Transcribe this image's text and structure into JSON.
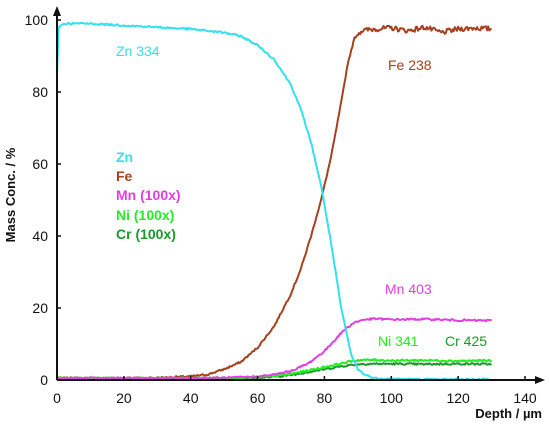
{
  "chart_data": {
    "type": "line",
    "xlabel": "Depth / µm",
    "ylabel": "Mass Conc. / %",
    "xlim": [
      0,
      140
    ],
    "ylim": [
      0,
      100
    ],
    "x_ticks": [
      0,
      20,
      40,
      60,
      80,
      100,
      120,
      140
    ],
    "y_ticks": [
      0,
      20,
      40,
      60,
      80,
      100
    ],
    "grid": false,
    "legend": {
      "placement": "center-left",
      "entries": [
        {
          "label": "Zn",
          "color": "#33e0f0"
        },
        {
          "label": "Fe",
          "color": "#a8401e"
        },
        {
          "label": "Mn (100x)",
          "color": "#e040e0"
        },
        {
          "label": "Ni (100x)",
          "color": "#22ee22"
        },
        {
          "label": "Cr (100x)",
          "color": "#1a9a2a"
        }
      ]
    },
    "annotations": [
      {
        "text": "Zn 334",
        "color": "#33e0f0"
      },
      {
        "text": "Fe 238",
        "color": "#a8401e"
      },
      {
        "text": "Mn 403",
        "color": "#e040e0"
      },
      {
        "text": "Ni 341",
        "color": "#22ee22"
      },
      {
        "text": "Cr 425",
        "color": "#1a9a2a"
      }
    ],
    "series": [
      {
        "name": "Zn",
        "color": "#33e0f0",
        "x": [
          0,
          0.5,
          2,
          10,
          20,
          30,
          40,
          50,
          55,
          60,
          65,
          70,
          73,
          76,
          79,
          82,
          85,
          88,
          90,
          92,
          95,
          100,
          110,
          120,
          130
        ],
        "y": [
          85,
          98,
          99,
          99,
          98.5,
          98,
          97.5,
          96.5,
          95.5,
          93,
          89,
          82,
          75,
          66,
          54,
          38,
          20,
          7,
          3,
          1.5,
          0.5,
          0.3,
          0.2,
          0.2,
          0.2
        ]
      },
      {
        "name": "Fe",
        "color": "#a8401e",
        "x": [
          0,
          10,
          20,
          30,
          40,
          45,
          50,
          55,
          60,
          65,
          70,
          73,
          76,
          79,
          82,
          85,
          87,
          89,
          91,
          95,
          100,
          105,
          110,
          115,
          120,
          125,
          130
        ],
        "y": [
          0.5,
          0.5,
          0.5,
          0.6,
          1,
          1.5,
          3,
          5,
          9,
          15,
          24,
          31,
          40,
          50,
          62,
          77,
          88,
          95,
          97,
          97.5,
          97.8,
          97,
          98,
          96.5,
          97.5,
          97.8,
          97.5
        ]
      },
      {
        "name": "Mn (100x)",
        "color": "#e040e0",
        "x": [
          0,
          20,
          40,
          50,
          60,
          65,
          70,
          75,
          80,
          83,
          86,
          89,
          92,
          95,
          100,
          110,
          120,
          130
        ],
        "y": [
          0.5,
          0.5,
          0.5,
          0.6,
          0.9,
          1.5,
          2.5,
          4.5,
          8,
          11,
          14,
          16,
          16.8,
          17,
          16.8,
          16.9,
          16.6,
          16.5
        ]
      },
      {
        "name": "Ni (100x)",
        "color": "#22ee22",
        "x": [
          0,
          20,
          40,
          50,
          60,
          65,
          70,
          75,
          80,
          85,
          88,
          90,
          95,
          100,
          110,
          120,
          130
        ],
        "y": [
          0.6,
          0.5,
          0.5,
          0.6,
          0.8,
          1.1,
          1.7,
          2.6,
          3.6,
          4.6,
          5.2,
          5.5,
          5.6,
          5.4,
          5.5,
          5.3,
          5.4
        ]
      },
      {
        "name": "Cr (100x)",
        "color": "#1a9a2a",
        "x": [
          0,
          20,
          40,
          50,
          60,
          65,
          70,
          75,
          80,
          85,
          90,
          95,
          100,
          110,
          120,
          130
        ],
        "y": [
          0.4,
          0.3,
          0.3,
          0.4,
          0.6,
          0.9,
          1.4,
          2.2,
          3.0,
          3.8,
          4.4,
          4.5,
          4.5,
          4.4,
          4.5,
          4.4
        ]
      }
    ]
  }
}
